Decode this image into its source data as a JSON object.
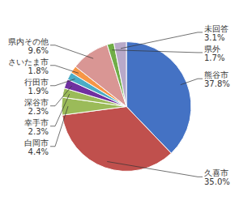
{
  "chart_data": {
    "type": "pie",
    "categories": [
      "熊谷市",
      "久喜市",
      "白岡市",
      "幸手市",
      "深谷市",
      "行田市",
      "さいたま市",
      "県内その他",
      "県外",
      "未回答"
    ],
    "values": [
      37.8,
      35.0,
      4.4,
      2.3,
      2.3,
      1.9,
      1.8,
      9.6,
      1.7,
      3.1
    ],
    "value_labels": [
      "37.8%",
      "35.0%",
      "4.4%",
      "2.3%",
      "2.3%",
      "1.9%",
      "1.8%",
      "9.6%",
      "1.7%",
      "3.1%"
    ],
    "colors": [
      "#4472c4",
      "#c0504d",
      "#9bbb59",
      "#9bbb59",
      "#7030a0",
      "#4bacc6",
      "#f79646",
      "#d99694",
      "#70ad47",
      "#b8a9c9"
    ],
    "data_labels": true
  }
}
